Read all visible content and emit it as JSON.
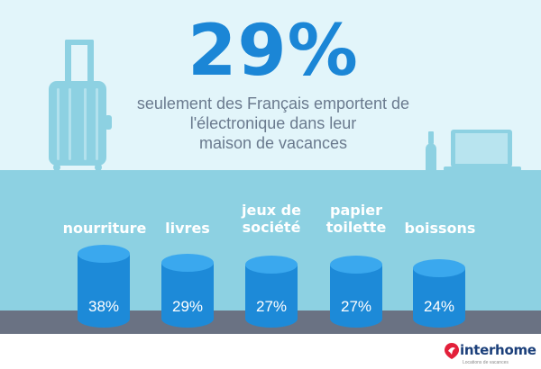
{
  "headline": {
    "percent": "29%",
    "subtitle": "seulement des Français emportent de\nl'électronique dans leur\nmaison de vacances"
  },
  "items": [
    {
      "label": "nourriture",
      "percent": "38%"
    },
    {
      "label": "livres",
      "percent": "29%"
    },
    {
      "label": "jeux de\nsociété",
      "percent": "27%"
    },
    {
      "label": "papier\ntoilette",
      "percent": "27%"
    },
    {
      "label": "boissons",
      "percent": "24%"
    }
  ],
  "brand": {
    "name": "interhome",
    "tagline": "Locations de vacances"
  },
  "colors": {
    "sky": "#e2f5fa",
    "counter": "#8dd1e2",
    "floor": "#6a7283",
    "accent_blue": "#1b86d6",
    "cylinder_side": "#1d8ad8",
    "cylinder_top": "#3aa8ee",
    "brand_red": "#e3203a",
    "brand_navy": "#1b3f7a"
  },
  "icons": [
    "suitcase-icon",
    "bottle-icon",
    "laptop-icon",
    "interhome-logo-icon"
  ]
}
